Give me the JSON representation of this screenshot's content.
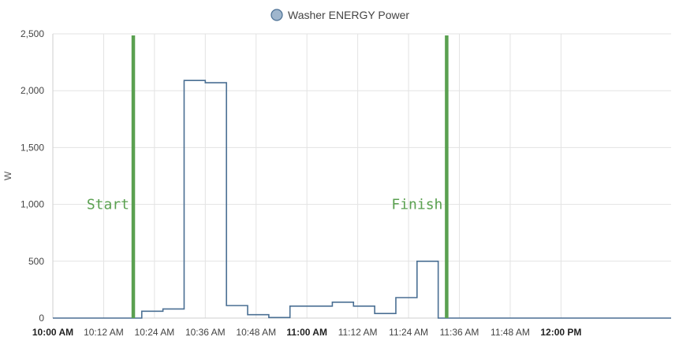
{
  "chart_data": {
    "type": "line",
    "step": true,
    "title": "",
    "xlabel": "",
    "ylabel": "W",
    "ylim": [
      0,
      2500
    ],
    "y_ticks": [
      {
        "value": 0,
        "label": "0"
      },
      {
        "value": 500,
        "label": "500"
      },
      {
        "value": 1000,
        "label": "1,000"
      },
      {
        "value": 1500,
        "label": "1,500"
      },
      {
        "value": 2000,
        "label": "2,000"
      },
      {
        "value": 2500,
        "label": "2,500"
      }
    ],
    "xlim": [
      "10:00",
      "12:26"
    ],
    "x_ticks": [
      {
        "time": "10:00",
        "label": "10:00 AM",
        "bold": true
      },
      {
        "time": "10:12",
        "label": "10:12 AM",
        "bold": false
      },
      {
        "time": "10:24",
        "label": "10:24 AM",
        "bold": false
      },
      {
        "time": "10:36",
        "label": "10:36 AM",
        "bold": false
      },
      {
        "time": "10:48",
        "label": "10:48 AM",
        "bold": false
      },
      {
        "time": "11:00",
        "label": "11:00 AM",
        "bold": true
      },
      {
        "time": "11:12",
        "label": "11:12 AM",
        "bold": false
      },
      {
        "time": "11:24",
        "label": "11:24 AM",
        "bold": false
      },
      {
        "time": "11:36",
        "label": "11:36 AM",
        "bold": false
      },
      {
        "time": "11:48",
        "label": "11:48 AM",
        "bold": false
      },
      {
        "time": "12:00",
        "label": "12:00 PM",
        "bold": true
      }
    ],
    "grid": true,
    "legend_position": "top-center",
    "series": [
      {
        "name": "Washer ENERGY Power",
        "color": "#4a6f93",
        "legend_fill": "#9fb6cd",
        "points": [
          {
            "x": "10:00",
            "y": 0
          },
          {
            "x": "10:20",
            "y": 0
          },
          {
            "x": "10:21",
            "y": 60
          },
          {
            "x": "10:26",
            "y": 80
          },
          {
            "x": "10:31",
            "y": 2090
          },
          {
            "x": "10:36",
            "y": 2070
          },
          {
            "x": "10:41",
            "y": 110
          },
          {
            "x": "10:46",
            "y": 30
          },
          {
            "x": "10:51",
            "y": 5
          },
          {
            "x": "10:56",
            "y": 105
          },
          {
            "x": "11:06",
            "y": 140
          },
          {
            "x": "11:11",
            "y": 105
          },
          {
            "x": "11:16",
            "y": 40
          },
          {
            "x": "11:21",
            "y": 180
          },
          {
            "x": "11:26",
            "y": 500
          },
          {
            "x": "11:31",
            "y": 0
          },
          {
            "x": "12:26",
            "y": 0
          }
        ]
      }
    ],
    "annotations": [
      {
        "type": "vline",
        "x": "10:19",
        "label": "Start",
        "color": "#5aa050"
      },
      {
        "type": "vline",
        "x": "11:33",
        "label": "Finish",
        "color": "#5aa050"
      }
    ]
  }
}
